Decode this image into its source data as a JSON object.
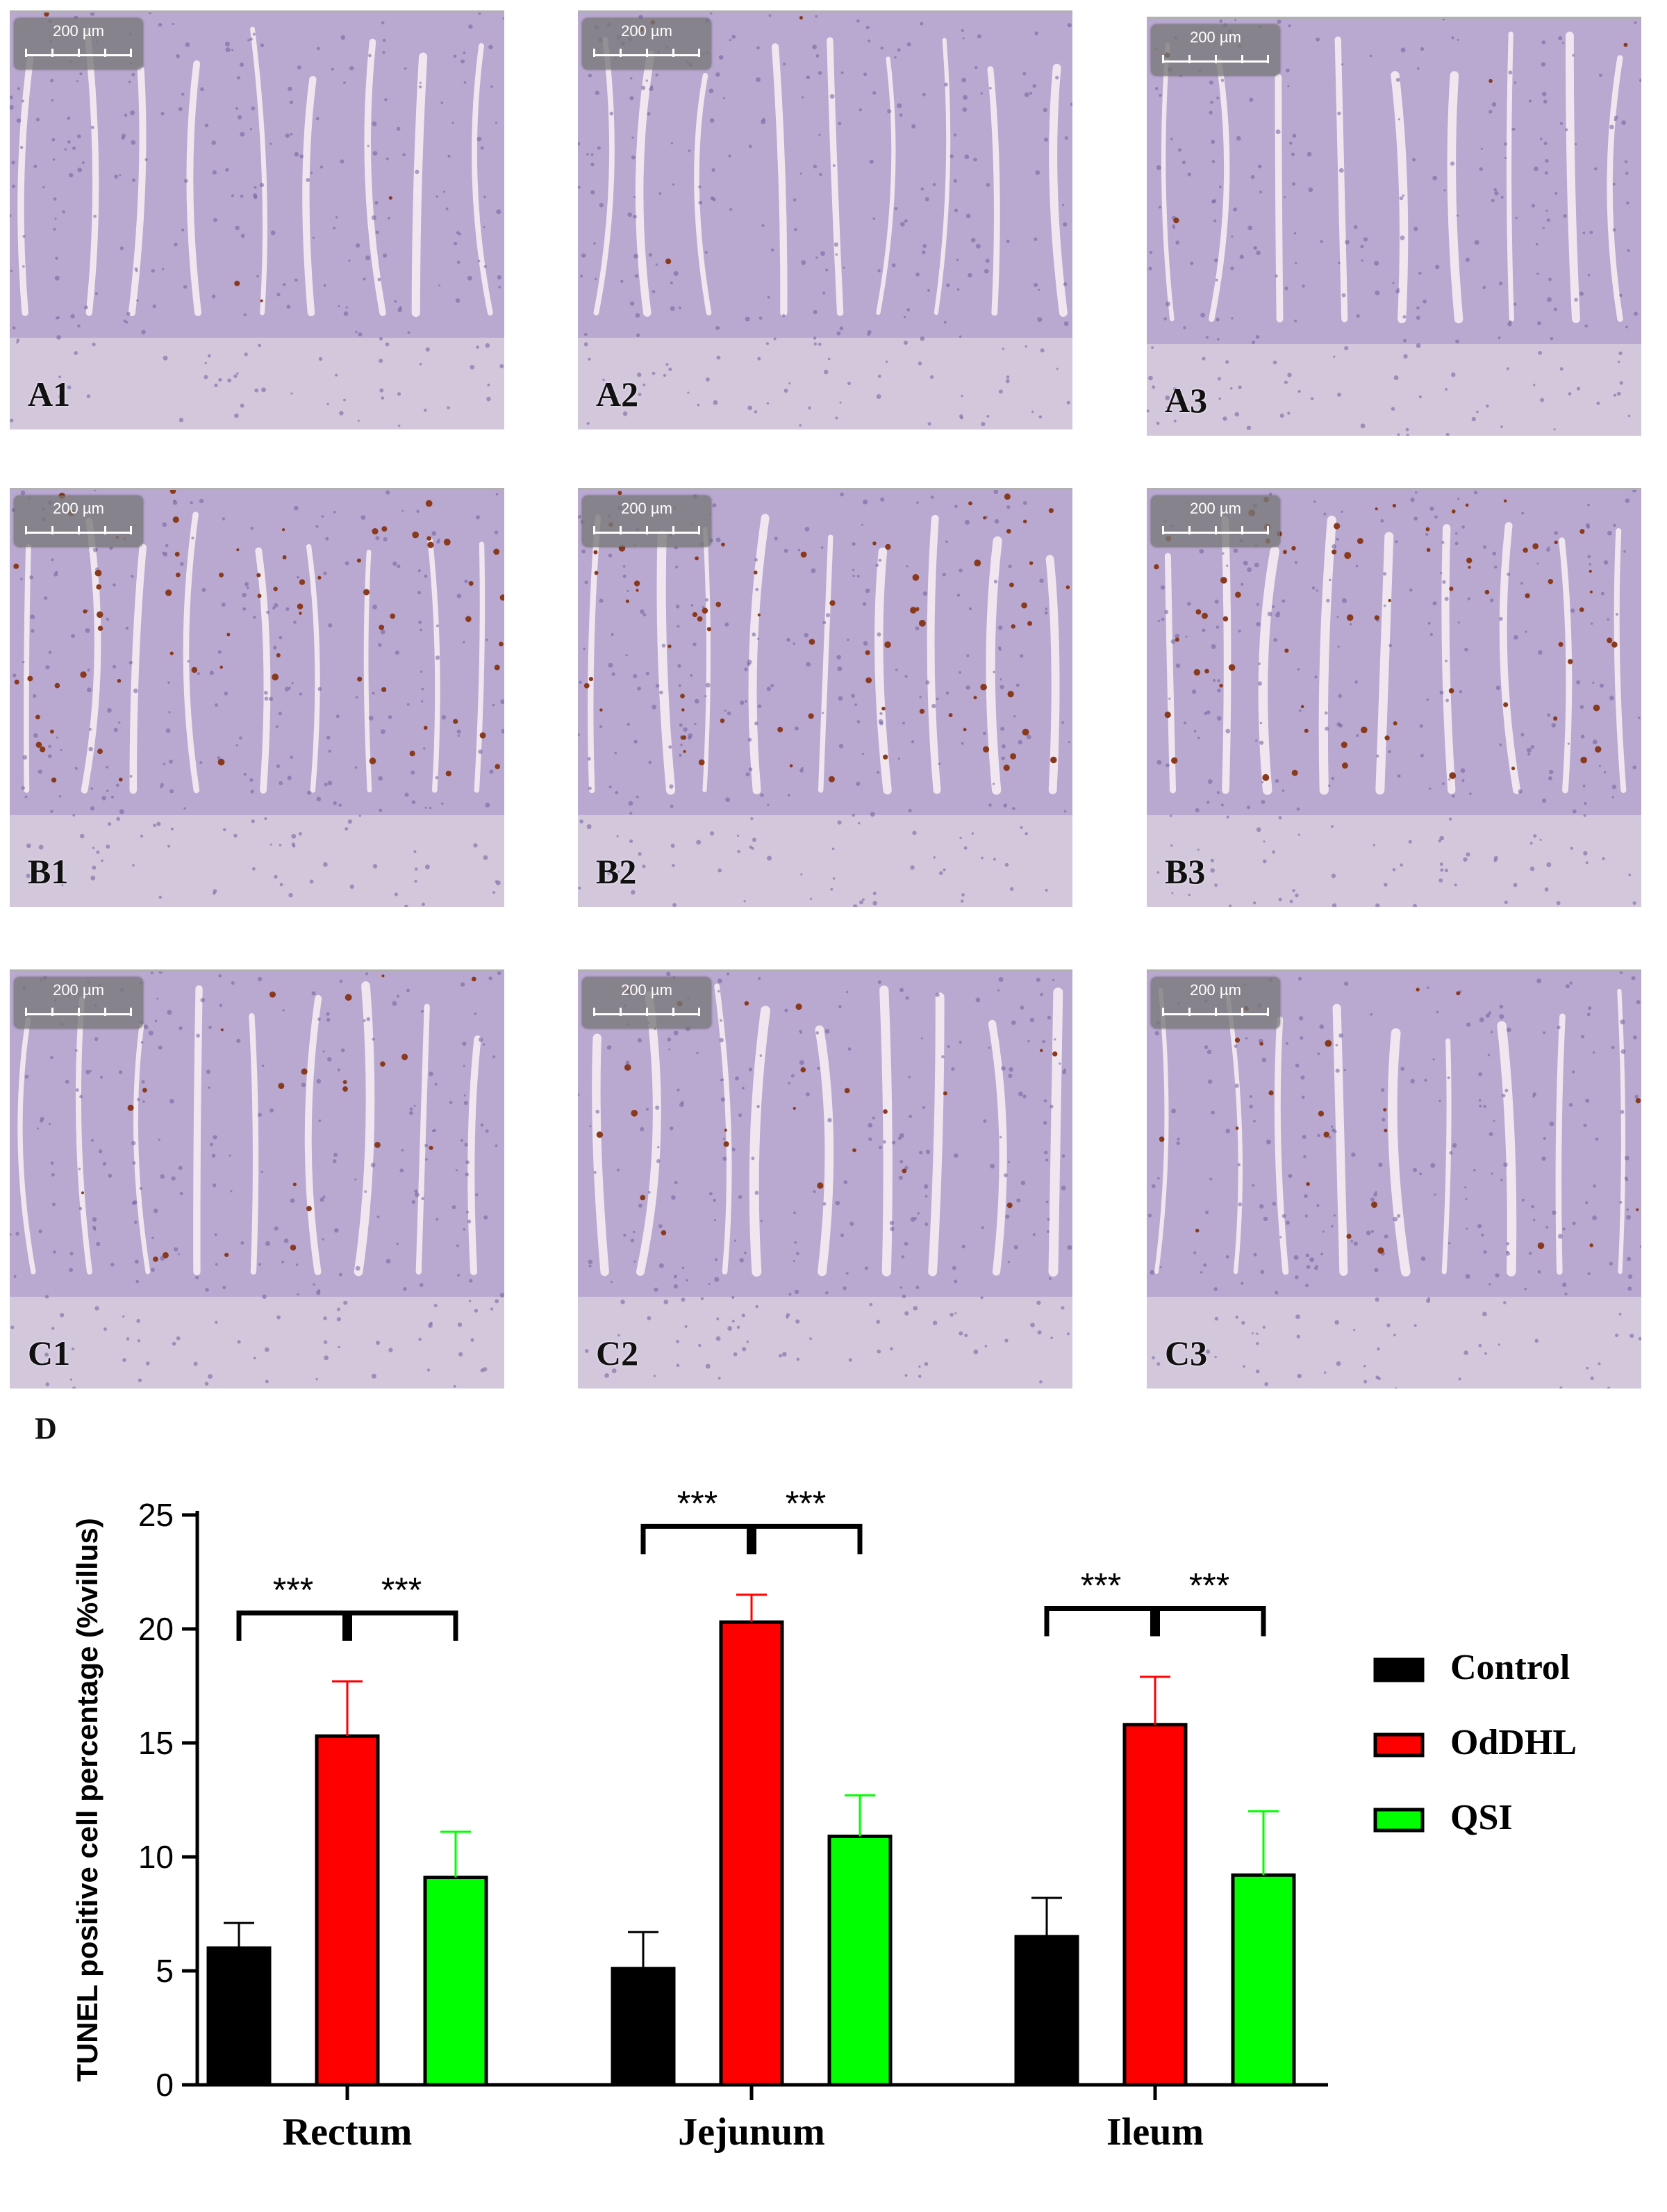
{
  "panels": [
    {
      "label": "A1",
      "scale": "200 µm",
      "stain": "low"
    },
    {
      "label": "A2",
      "scale": "200 µm",
      "stain": "low"
    },
    {
      "label": "A3",
      "scale": "200 µm",
      "stain": "low"
    },
    {
      "label": "B1",
      "scale": "200 µm",
      "stain": "high"
    },
    {
      "label": "B2",
      "scale": "200 µm",
      "stain": "high"
    },
    {
      "label": "B3",
      "scale": "200 µm",
      "stain": "high"
    },
    {
      "label": "C1",
      "scale": "200 µm",
      "stain": "medium"
    },
    {
      "label": "C2",
      "scale": "200 µm",
      "stain": "medium"
    },
    {
      "label": "C3",
      "scale": "200 µm",
      "stain": "medium"
    }
  ],
  "chart_label": "D",
  "chart_data": {
    "type": "bar",
    "categories": [
      "Rectum",
      "Jejunum",
      "Ileum"
    ],
    "series": [
      {
        "name": "Control",
        "color": "#000000",
        "error_color": "#000000",
        "values": [
          6.0,
          5.1,
          6.5
        ],
        "errors": [
          1.1,
          1.6,
          1.7
        ]
      },
      {
        "name": "OdDHL",
        "color": "#ff0000",
        "error_color": "#ff0000",
        "values": [
          15.3,
          20.3,
          15.8
        ],
        "errors": [
          2.4,
          1.2,
          2.1
        ]
      },
      {
        "name": "QSI",
        "color": "#00ff00",
        "error_color": "#00ff00",
        "values": [
          9.1,
          10.9,
          9.2
        ],
        "errors": [
          2.0,
          1.8,
          2.8
        ]
      }
    ],
    "significance": [
      {
        "category": "Rectum",
        "left": "***",
        "right": "***"
      },
      {
        "category": "Jejunum",
        "left": "***",
        "right": "***"
      },
      {
        "category": "Ileum",
        "left": "***",
        "right": "***"
      }
    ],
    "ylabel": "TUNEL positive cell percentage (%villus)",
    "xlabel": "",
    "ylim": [
      0,
      25
    ],
    "yticks": [
      0,
      5,
      10,
      15,
      20,
      25
    ],
    "legend_position": "right",
    "grid": false
  }
}
